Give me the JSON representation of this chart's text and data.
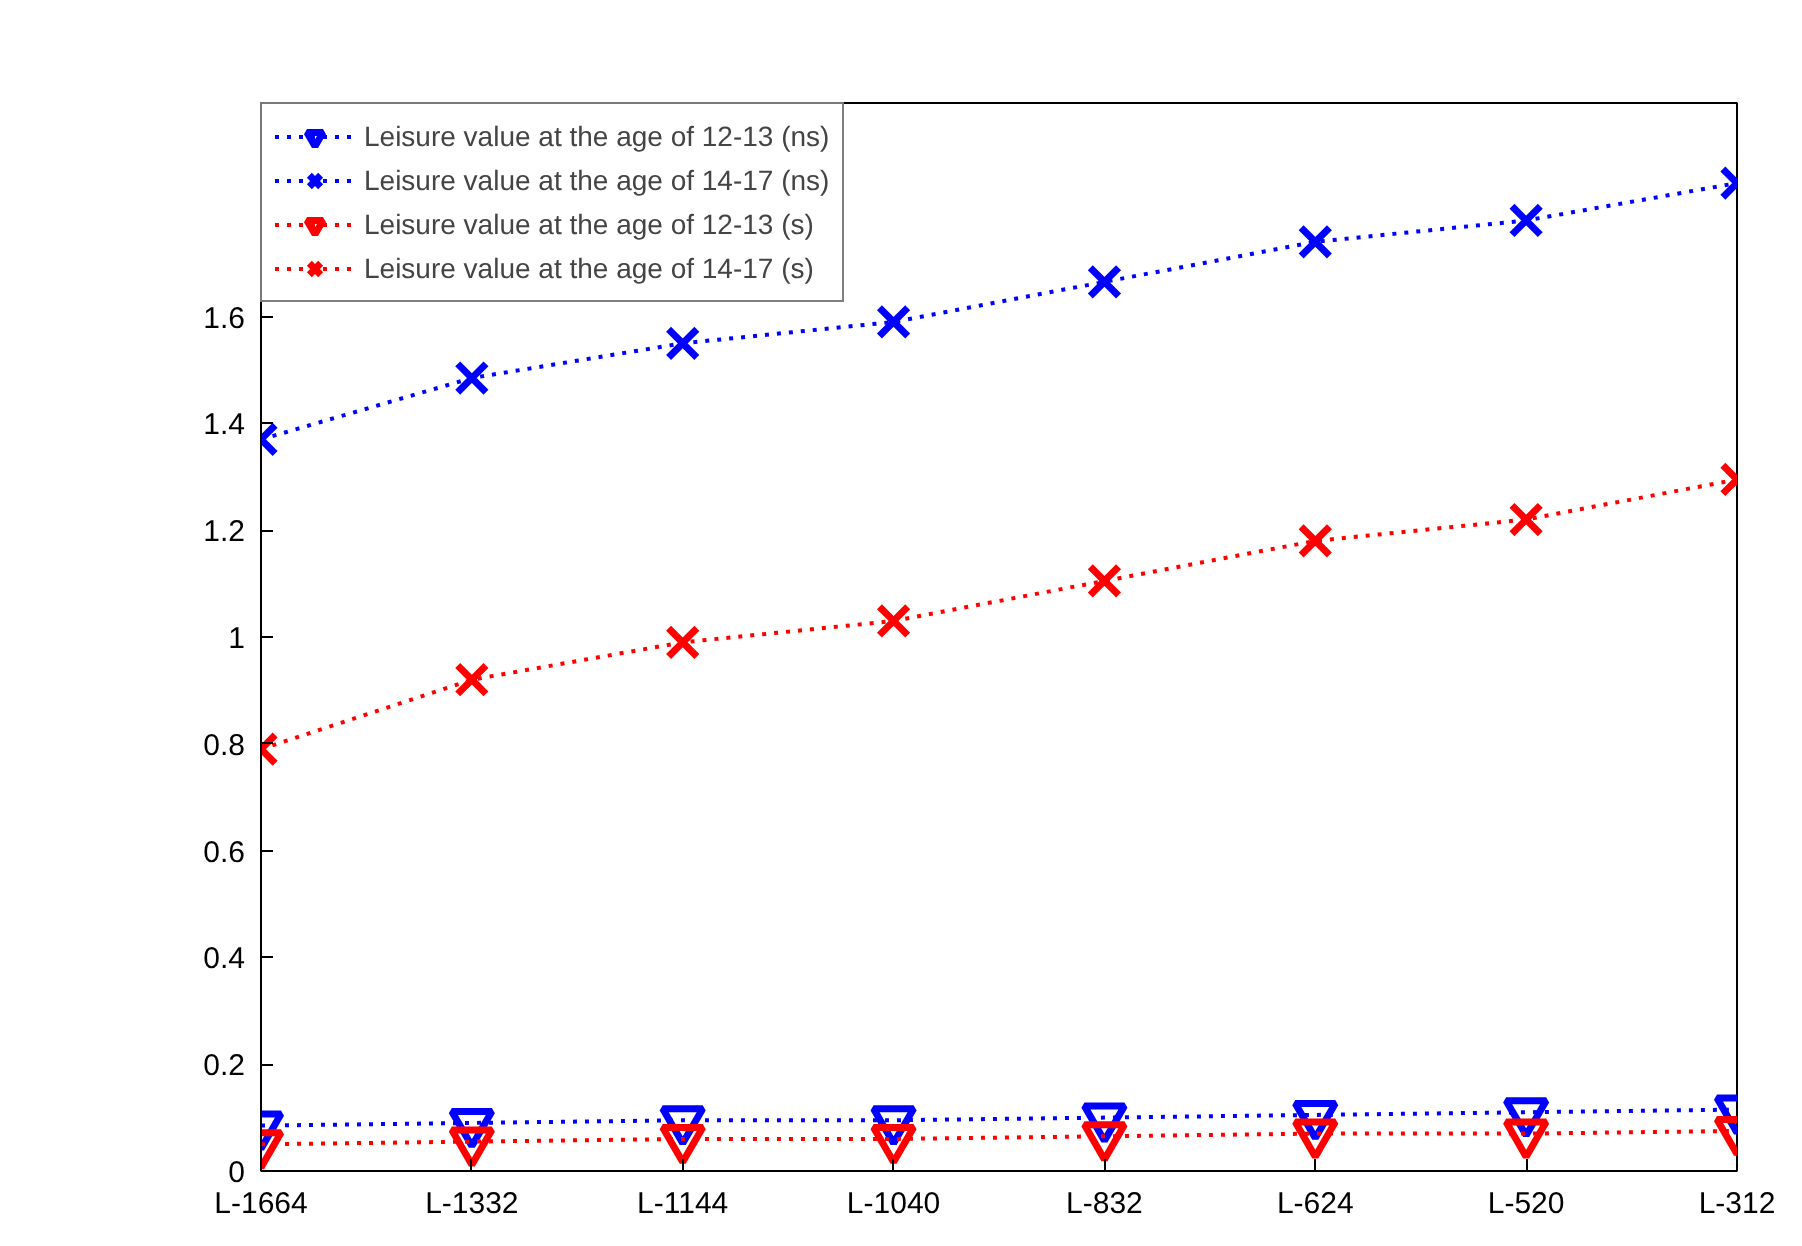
{
  "chart_data": {
    "type": "line",
    "categories": [
      "L-1664",
      "L-1332",
      "L-1144",
      "L-1040",
      "L-832",
      "L-624",
      "L-520",
      "L-312"
    ],
    "ylim": [
      0,
      2
    ],
    "yticks": [
      0,
      0.2,
      0.4,
      0.6,
      0.8,
      1,
      1.2,
      1.4,
      1.6
    ],
    "grid": false,
    "legend": "top left",
    "line_style": "dotted",
    "series": [
      {
        "name": "Leisure value at the age of 12-13 (ns)",
        "color": "#0000ff",
        "marker": "triangle",
        "values": [
          0.085,
          0.09,
          0.095,
          0.095,
          0.1,
          0.105,
          0.11,
          0.115
        ]
      },
      {
        "name": "Leisure value at the age of 14-17 (ns)",
        "color": "#0000ff",
        "marker": "cross",
        "values": [
          1.37,
          1.485,
          1.55,
          1.59,
          1.665,
          1.74,
          1.78,
          1.85
        ]
      },
      {
        "name": "Leisure value at the age of 12-13 (s)",
        "color": "#ff0000",
        "marker": "triangle",
        "values": [
          0.05,
          0.055,
          0.06,
          0.06,
          0.065,
          0.07,
          0.07,
          0.075
        ]
      },
      {
        "name": "Leisure value at the age of 14-17 (s)",
        "color": "#ff0000",
        "marker": "cross",
        "values": [
          0.79,
          0.92,
          0.99,
          1.03,
          1.105,
          1.18,
          1.22,
          1.295
        ]
      }
    ]
  }
}
